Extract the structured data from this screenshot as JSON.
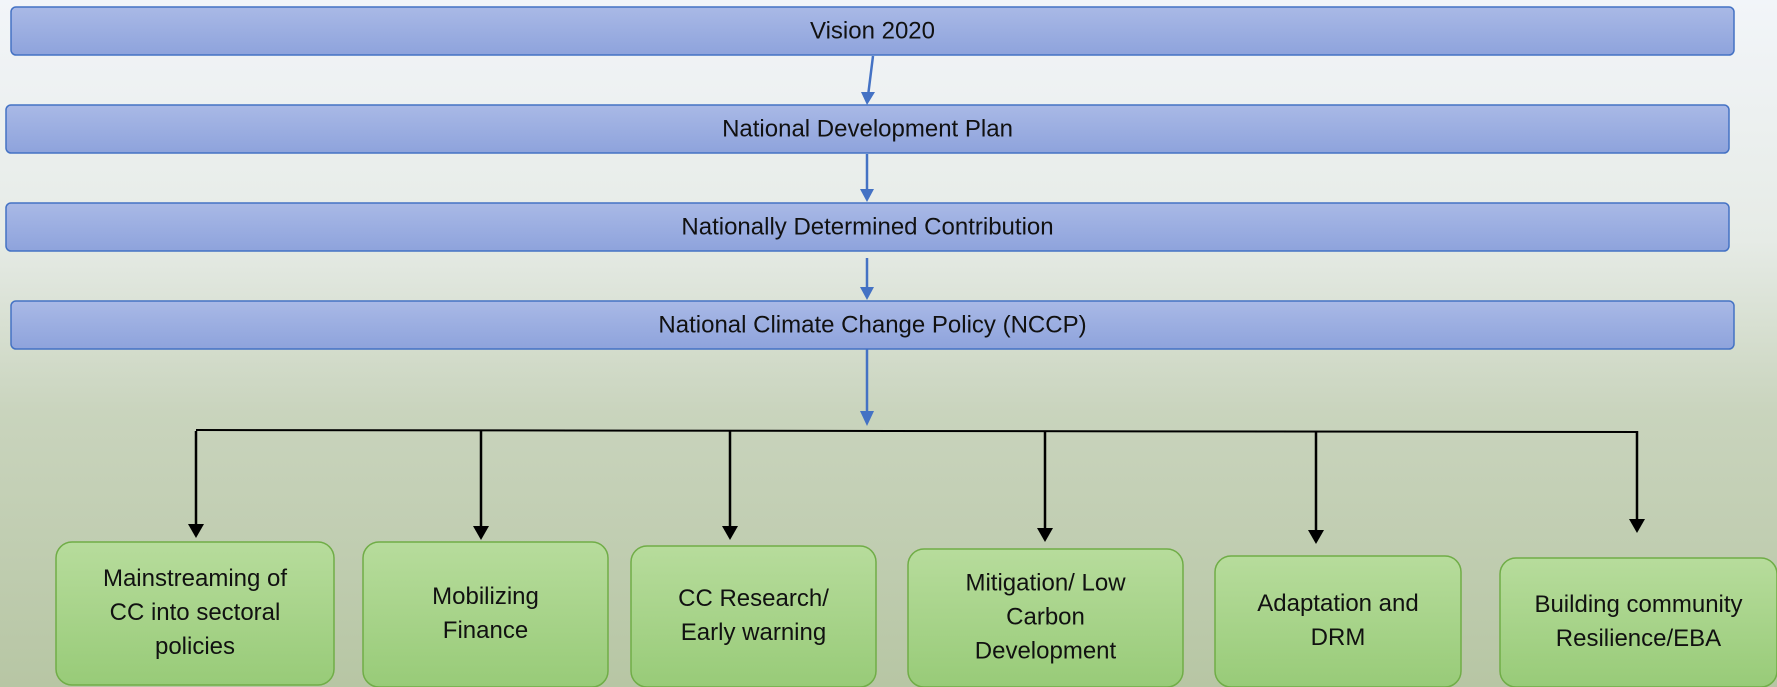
{
  "levels": [
    "Vision 2020",
    "National Development Plan",
    "Nationally Determined Contribution",
    "National Climate Change Policy (NCCP)"
  ],
  "pillars": [
    [
      "Mainstreaming of",
      "CC into sectoral",
      "policies"
    ],
    [
      "Mobilizing",
      "Finance"
    ],
    [
      "CC Research/",
      "Early warning"
    ],
    [
      "Mitigation/ Low",
      "Carbon",
      "Development"
    ],
    [
      "Adaptation and",
      "DRM"
    ],
    [
      "Building community",
      "Resilience/EBA"
    ]
  ]
}
